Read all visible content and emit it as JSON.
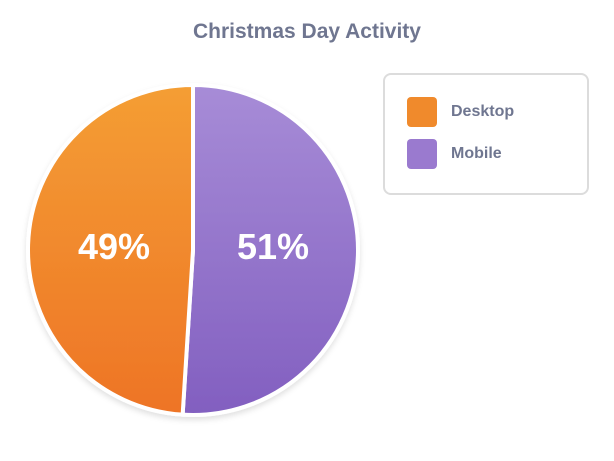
{
  "chart_data": {
    "type": "pie",
    "title": "Christmas Day Activity",
    "categories": [
      "Desktop",
      "Mobile"
    ],
    "values": [
      49,
      51
    ],
    "labels": [
      "49%",
      "51%"
    ],
    "colors": [
      "#F08A2C",
      "#9A7ACF"
    ],
    "legend_position": "right"
  },
  "title": "Christmas Day Activity",
  "legend": {
    "items": [
      {
        "label": "Desktop",
        "color": "#F08A2C"
      },
      {
        "label": "Mobile",
        "color": "#9A7ACF"
      }
    ]
  },
  "slices": [
    {
      "label": "49%"
    },
    {
      "label": "51%"
    }
  ]
}
